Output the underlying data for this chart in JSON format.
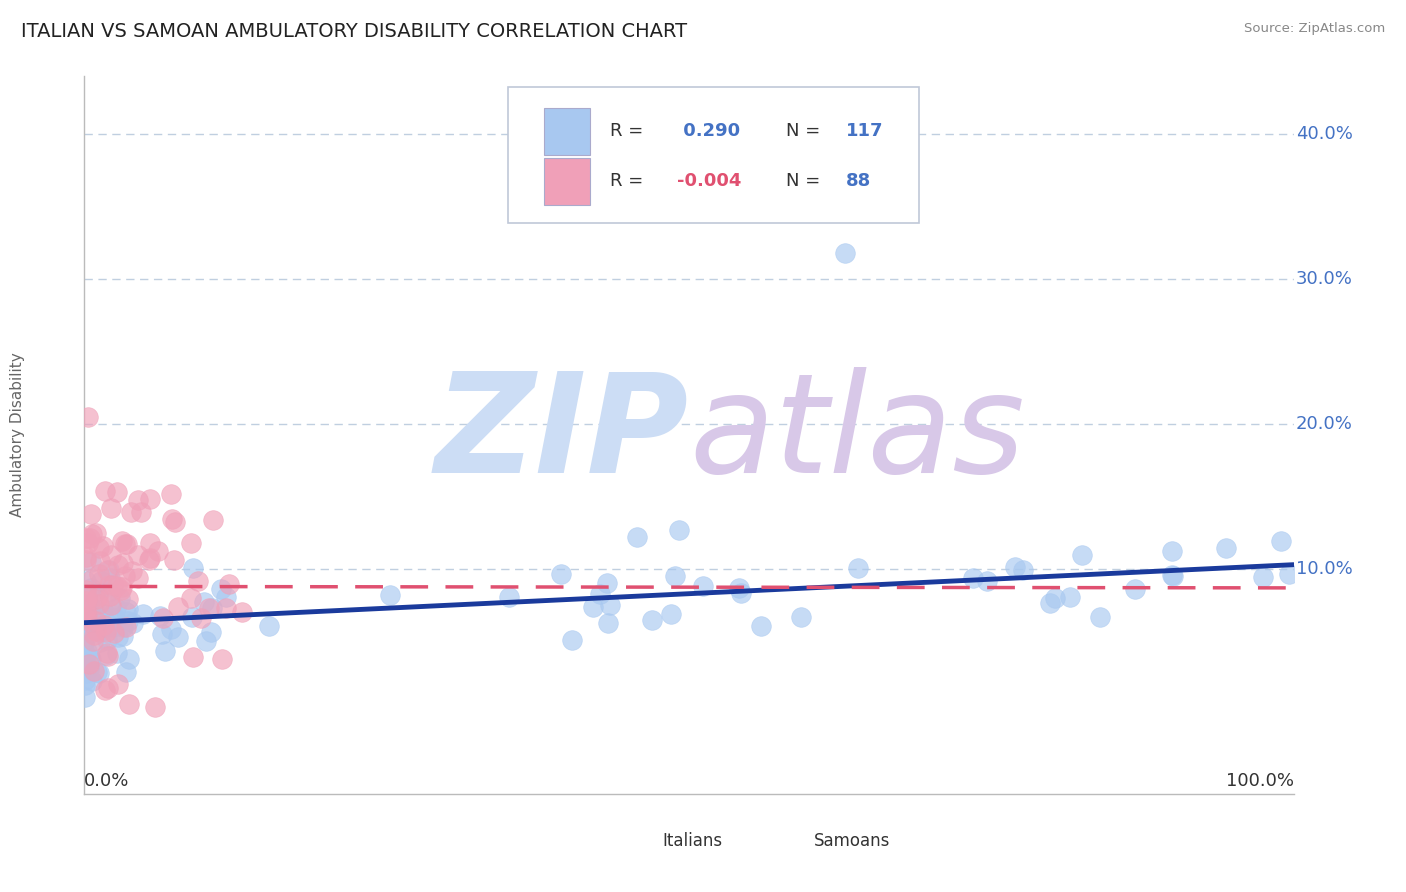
{
  "title": "ITALIAN VS SAMOAN AMBULATORY DISABILITY CORRELATION CHART",
  "source": "Source: ZipAtlas.com",
  "ylabel": "Ambulatory Disability",
  "italian_R": 0.29,
  "italian_N": 117,
  "samoan_R": -0.004,
  "samoan_N": 88,
  "italian_color": "#a8c8f0",
  "samoan_color": "#f0a0b8",
  "italian_line_color": "#1a3a9c",
  "samoan_line_color": "#e05070",
  "watermark_zip": "ZIP",
  "watermark_atlas": "atlas",
  "watermark_color": "#ccddf5",
  "watermark_color2": "#d8c8e8",
  "background_color": "#ffffff",
  "grid_color": "#c0cfe0",
  "title_fontsize": 14,
  "ytick_labels": [
    "40.0%",
    "30.0%",
    "20.0%",
    "10.0%"
  ],
  "ytick_values": [
    0.4,
    0.3,
    0.2,
    0.1
  ],
  "xlim": [
    0.0,
    1.0
  ],
  "ylim": [
    -0.055,
    0.44
  ],
  "italian_line_x0": 0.0,
  "italian_line_y0": 0.063,
  "italian_line_x1": 1.0,
  "italian_line_y1": 0.103,
  "samoan_line_x0": 0.0,
  "samoan_line_y0": 0.088,
  "samoan_line_x1": 1.0,
  "samoan_line_y1": 0.087
}
